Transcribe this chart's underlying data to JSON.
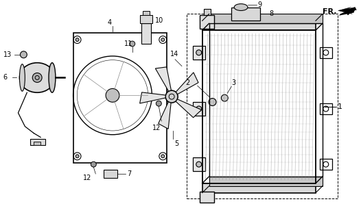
{
  "bg_color": "#ffffff",
  "line_color": "#000000",
  "gray_color": "#888888",
  "dark_gray": "#555555"
}
